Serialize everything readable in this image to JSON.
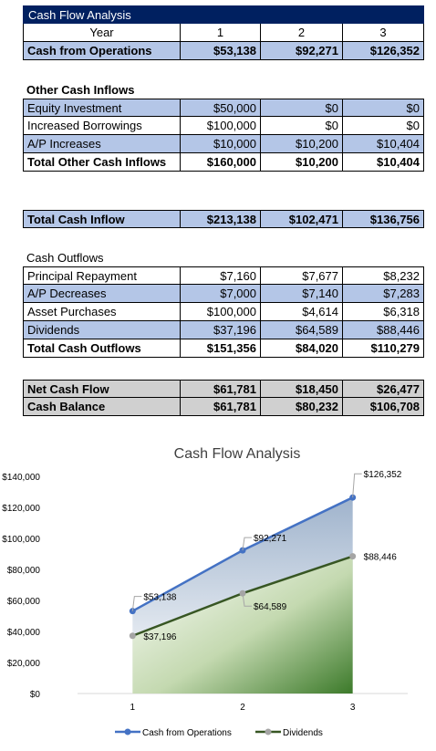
{
  "sheet": {
    "title": "Cash Flow Analysis",
    "year_header": [
      "Year",
      "1",
      "2",
      "3"
    ],
    "ops": [
      "Cash from Operations",
      "$53,138",
      "$92,271",
      "$126,352"
    ],
    "other_inflows_heading": "Other Cash Inflows",
    "other_inflows": [
      [
        "Equity Investment",
        "$50,000",
        "$0",
        "$0"
      ],
      [
        "Increased Borrowings",
        "$100,000",
        "$0",
        "$0"
      ],
      [
        "A/P Increases",
        "$10,000",
        "$10,200",
        "$10,404"
      ],
      [
        "Total Other Cash Inflows",
        "$160,000",
        "$10,200",
        "$10,404"
      ]
    ],
    "total_inflow": [
      "Total Cash Inflow",
      "$213,138",
      "$102,471",
      "$136,756"
    ],
    "outflows_heading": "Cash Outflows",
    "outflows": [
      [
        "Principal Repayment",
        "$7,160",
        "$7,677",
        "$8,232"
      ],
      [
        "A/P Decreases",
        "$7,000",
        "$7,140",
        "$7,283"
      ],
      [
        "Asset Purchases",
        "$100,000",
        "$4,614",
        "$6,318"
      ],
      [
        "Dividends",
        "$37,196",
        "$64,589",
        "$88,446"
      ],
      [
        "Total Cash Outflows",
        "$151,356",
        "$84,020",
        "$110,279"
      ]
    ],
    "net": [
      [
        "Net Cash Flow",
        "$61,781",
        "$18,450",
        "$26,477"
      ],
      [
        "Cash Balance",
        "$61,781",
        "$80,232",
        "$106,708"
      ]
    ]
  },
  "chart_data": {
    "type": "area",
    "title": "Cash Flow Analysis",
    "categories": [
      "1",
      "2",
      "3"
    ],
    "ylim": [
      0,
      140000
    ],
    "y_ticks": [
      0,
      20000,
      40000,
      60000,
      80000,
      100000,
      120000,
      140000
    ],
    "y_tick_labels": [
      "$0",
      "$20,000",
      "$40,000",
      "$60,000",
      "$80,000",
      "$100,000",
      "$120,000",
      "$140,000"
    ],
    "series": [
      {
        "name": "Cash from Operations",
        "values": [
          53138,
          92271,
          126352
        ],
        "labels": [
          "$53,138",
          "$92,271",
          "$126,352"
        ],
        "color": "#4472c4"
      },
      {
        "name": "Dividends",
        "values": [
          37196,
          64589,
          88446
        ],
        "labels": [
          "$37,196",
          "$64,589",
          "$88,446"
        ],
        "color": "#375623"
      }
    ],
    "legend_position": "bottom",
    "grid": false
  }
}
